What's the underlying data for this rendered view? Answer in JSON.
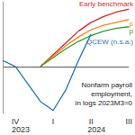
{
  "chart_data": {
    "type": "line",
    "categories": [
      null,
      "IV",
      null,
      null,
      "I",
      null,
      null,
      "II",
      null,
      null,
      "III"
    ],
    "series": [
      {
        "name": "Early benchmark",
        "color": "#d62728",
        "values": [
          null,
          null,
          null,
          0,
          0.4,
          0.8,
          1.2,
          1.5,
          1.7,
          1.85,
          1.95
        ]
      },
      {
        "name": "p",
        "color": "#ff7f0e",
        "values": [
          null,
          null,
          null,
          0,
          0.35,
          0.7,
          1.0,
          1.25,
          1.4,
          1.5,
          1.6
        ]
      },
      {
        "name": "p",
        "color": "#2ca02c",
        "values": [
          null,
          null,
          null,
          0,
          0.3,
          0.6,
          0.85,
          1.05,
          1.2,
          1.3,
          1.35
        ]
      },
      {
        "name": "QCEW (n.s.a.)",
        "color": "#1f77b4",
        "values": [
          0.2,
          0.0,
          -0.6,
          -1.2,
          -1.5,
          -0.8,
          0.2,
          1.1,
          null,
          null,
          null
        ]
      }
    ],
    "annotations": [
      {
        "text": "2023",
        "at": 1
      },
      {
        "text": "2024",
        "at": 7
      },
      {
        "text": "Nonfarm payroll"
      },
      {
        "text": "employment,"
      },
      {
        "text": "in logs 2023M3=0"
      }
    ],
    "ylim": [
      -1.6,
      2.2
    ],
    "yticks": [
      0
    ],
    "grid": true,
    "tick_labels": "x"
  }
}
